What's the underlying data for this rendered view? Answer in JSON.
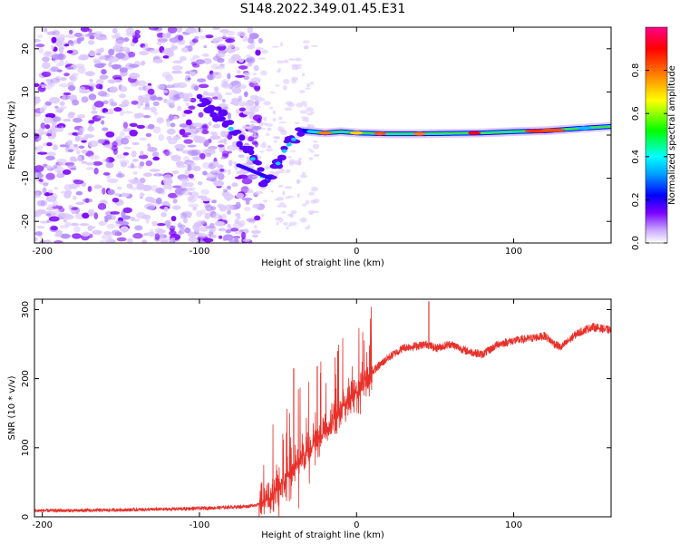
{
  "title": "S148.2022.349.01.45.E31",
  "colors": {
    "snr_line": "#e8302a",
    "spectral_low": "#dcc8ff",
    "spectral_mid": "#7a00ff"
  },
  "chart_data": [
    {
      "type": "heatmap",
      "name": "spectrogram",
      "xlabel": "Height of straight line (km)",
      "ylabel": "Frequency (Hz)",
      "xlim": [
        -205,
        162
      ],
      "ylim": [
        -25,
        25
      ],
      "xticks": [
        -200,
        -100,
        0,
        100
      ],
      "xtick_labels": [
        "-200",
        "-100",
        "0",
        "100"
      ],
      "yticks": [
        20,
        10,
        0,
        -10,
        -20
      ],
      "ytick_labels": [
        "20",
        "10",
        "0",
        "-10",
        "-20"
      ],
      "colorbar": {
        "label": "Normalized spectral amplitude",
        "range": [
          0,
          1
        ],
        "ticks": [
          0.0,
          0.2,
          0.4,
          0.6,
          0.8
        ],
        "tick_labels": [
          "0.0",
          "0.2",
          "0.4",
          "0.6",
          "0.8"
        ]
      },
      "ridge": {
        "x": [
          -100,
          -85,
          -75,
          -65,
          -58,
          -52,
          -45,
          -35,
          -20,
          -10,
          0,
          20,
          40,
          60,
          80,
          100,
          120,
          140,
          162
        ],
        "freq": [
          8,
          4,
          -1,
          -6,
          -11,
          -8,
          -3,
          1,
          0.5,
          0.8,
          0.5,
          0.3,
          0.3,
          0.4,
          0.5,
          0.8,
          1.0,
          1.5,
          2.0
        ]
      }
    },
    {
      "type": "line",
      "name": "snr",
      "xlabel": "Height of straight line (km)",
      "ylabel": "SNR (10 * v/v)",
      "xlim": [
        -205,
        162
      ],
      "ylim": [
        0,
        315
      ],
      "xticks": [
        -200,
        -100,
        0,
        100
      ],
      "xtick_labels": [
        "-200",
        "-100",
        "0",
        "100"
      ],
      "yticks": [
        0,
        100,
        200,
        300
      ],
      "ytick_labels": [
        "0",
        "100",
        "200",
        "300"
      ],
      "series": [
        {
          "name": "SNR",
          "x": [
            -205,
            -180,
            -150,
            -120,
            -90,
            -70,
            -62,
            -55,
            -50,
            -45,
            -40,
            -35,
            -30,
            -25,
            -20,
            -15,
            -10,
            -5,
            0,
            5,
            10,
            20,
            30,
            40,
            45,
            50,
            55,
            60,
            70,
            80,
            85,
            90,
            100,
            110,
            120,
            125,
            130,
            140,
            150,
            162
          ],
          "values": [
            9,
            9,
            10,
            11,
            13,
            15,
            18,
            28,
            40,
            55,
            70,
            85,
            100,
            112,
            125,
            140,
            155,
            168,
            180,
            195,
            210,
            230,
            245,
            248,
            250,
            244,
            247,
            250,
            240,
            235,
            242,
            250,
            255,
            258,
            262,
            252,
            245,
            265,
            275,
            270
          ]
        }
      ],
      "spikes": [
        {
          "x": 46,
          "value": 312
        },
        {
          "x": -40,
          "value": 215
        },
        {
          "x": -25,
          "value": 218
        },
        {
          "x": -12,
          "value": 240
        }
      ]
    }
  ]
}
